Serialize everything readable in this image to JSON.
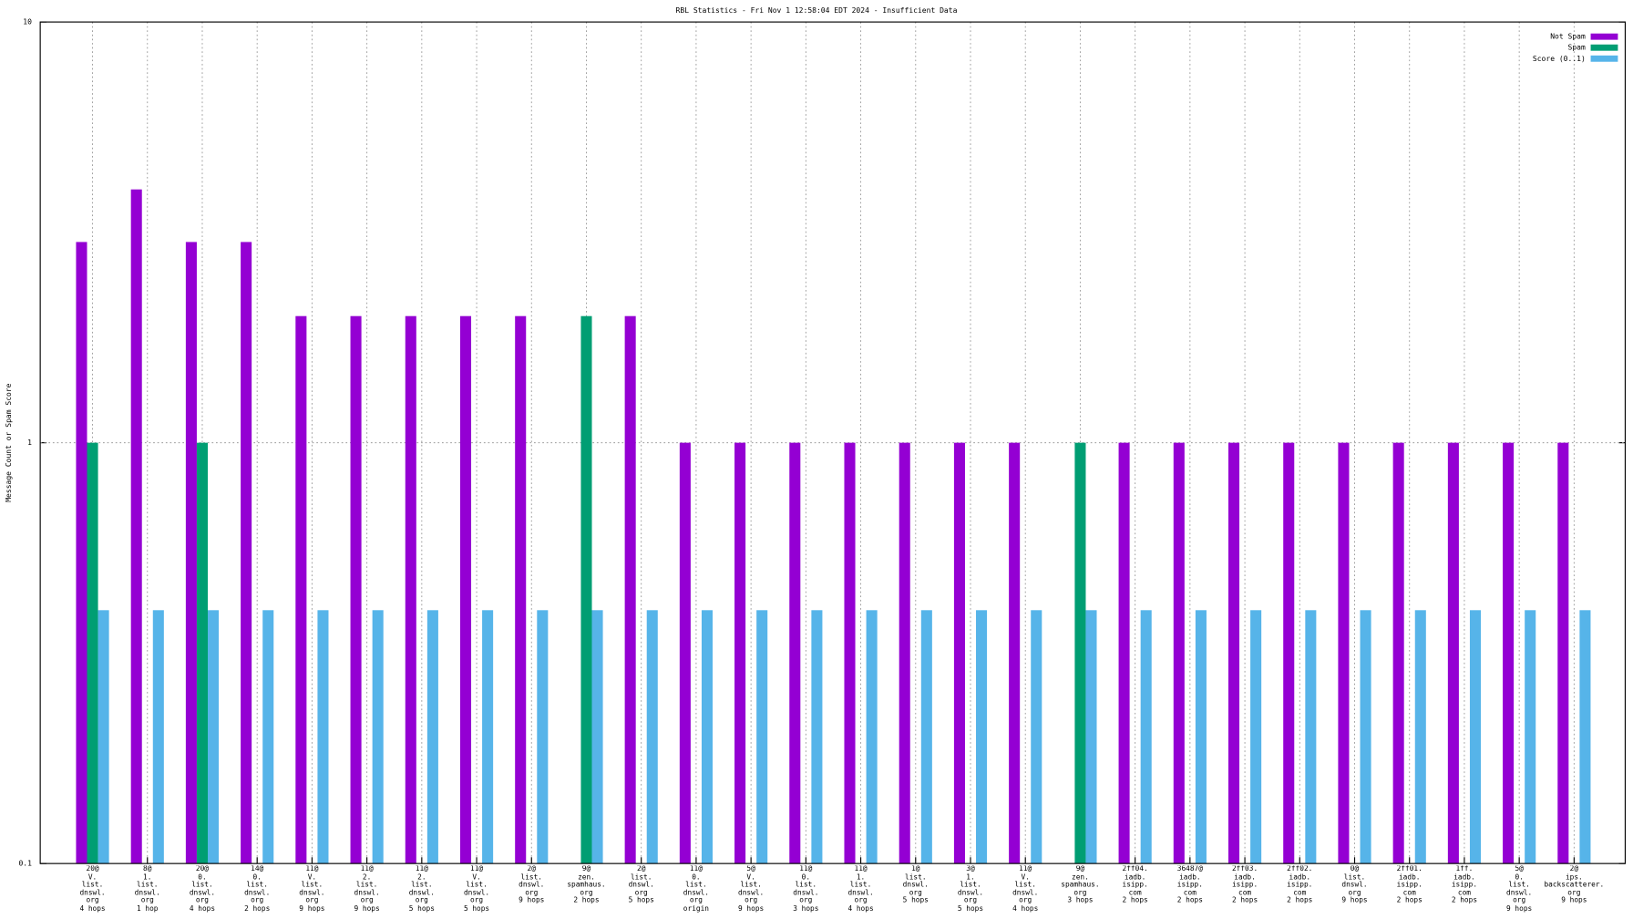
{
  "chart_data": {
    "type": "bar",
    "title": "RBL Statistics - Fri Nov  1 12:58:04 EDT 2024 - Insufficient Data",
    "y_label": "Message Count or Spam Score",
    "categories": [
      "20@\nV.\nlist.\ndnswl.\norg\n4 hops",
      "8@\n1.\nlist.\ndnswl.\norg\n1 hop",
      "20@\n0.\nlist.\ndnswl.\norg\n4 hops",
      "14@\n0.\nlist.\ndnswl.\norg\n2 hops",
      "11@\nV.\nlist.\ndnswl.\norg\n9 hops",
      "11@\n2.\nlist.\ndnswl.\norg\n9 hops",
      "11@\n2.\nlist.\ndnswl.\norg\n5 hops",
      "11@\nV.\nlist.\ndnswl.\norg\n5 hops",
      "2@\nlist.\ndnswl.\norg\n9 hops",
      "9@\nzen.\nspamhaus.\norg\n2 hops",
      "2@\nlist.\ndnswl.\norg\n5 hops",
      "11@\n0.\nlist.\ndnswl.\norg\norigin",
      "5@\nV.\nlist.\ndnswl.\norg\n9 hops",
      "11@\n0.\nlist.\ndnswl.\norg\n3 hops",
      "11@\n1.\nlist.\ndnswl.\norg\n4 hops",
      "1@\nlist.\ndnswl.\norg\n5 hops",
      "3@\n1.\nlist.\ndnswl.\norg\n5 hops",
      "11@\nV.\nlist.\ndnswl.\norg\n4 hops",
      "9@\nzen.\nspamhaus.\norg\n3 hops",
      "2ff04.\niadb.\nisipp.\ncom\n2 hops",
      "36487@\niadb.\nisipp.\ncom\n2 hops",
      "2ff03.\niadb.\nisipp.\ncom\n2 hops",
      "2ff02.\niadb.\nisipp.\ncom\n2 hops",
      "0@\nlist.\ndnswl.\norg\n9 hops",
      "2ff01.\niadb.\nisipp.\ncom\n2 hops",
      "1ff.\niadb.\nisipp.\ncom\n2 hops",
      "5@\n0.\nlist.\ndnswl.\norg\n9 hops",
      "2@\nips.\nbackscatterer.\norg\n9 hops"
    ],
    "series": [
      {
        "name": "Not Spam",
        "color": "#9400d3",
        "values": [
          3,
          4,
          3,
          3,
          2,
          2,
          2,
          2,
          2,
          null,
          2,
          1,
          1,
          1,
          1,
          1,
          1,
          1,
          null,
          1,
          1,
          1,
          1,
          1,
          1,
          1,
          1,
          1
        ]
      },
      {
        "name": "Spam",
        "color": "#009e73",
        "values": [
          1,
          null,
          1,
          null,
          null,
          null,
          null,
          null,
          null,
          2,
          null,
          null,
          null,
          null,
          null,
          null,
          null,
          null,
          1,
          null,
          null,
          null,
          null,
          null,
          null,
          null,
          null,
          null
        ]
      },
      {
        "name": "Score (0..1)",
        "color": "#56b4e9",
        "values": [
          0.4,
          0.4,
          0.4,
          0.4,
          0.4,
          0.4,
          0.4,
          0.4,
          0.4,
          0.4,
          0.4,
          0.4,
          0.4,
          0.4,
          0.4,
          0.4,
          0.4,
          0.4,
          0.4,
          0.4,
          0.4,
          0.4,
          0.4,
          0.4,
          0.4,
          0.4,
          0.4,
          0.4
        ]
      }
    ],
    "ylim": [
      0.1,
      10
    ],
    "yticks": [
      0.1,
      1,
      10
    ],
    "log_y": true,
    "grid": true,
    "legend": "top-right"
  }
}
